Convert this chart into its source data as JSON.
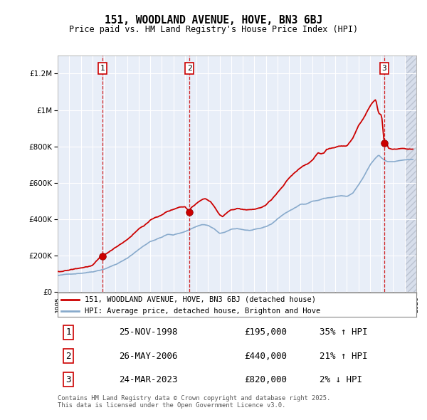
{
  "title": "151, WOODLAND AVENUE, HOVE, BN3 6BJ",
  "subtitle": "Price paid vs. HM Land Registry's House Price Index (HPI)",
  "property_label": "151, WOODLAND AVENUE, HOVE, BN3 6BJ (detached house)",
  "hpi_label": "HPI: Average price, detached house, Brighton and Hove",
  "transactions": [
    {
      "num": 1,
      "date_str": "25-NOV-1998",
      "t": 1998.875,
      "price": 195000,
      "pct": "35%",
      "dir": "↑"
    },
    {
      "num": 2,
      "date_str": "26-MAY-2006",
      "t": 2006.4,
      "price": 440000,
      "pct": "21%",
      "dir": "↑"
    },
    {
      "num": 3,
      "date_str": "24-MAR-2023",
      "t": 2023.22,
      "price": 820000,
      "pct": "2%",
      "dir": "↓"
    }
  ],
  "footer": "Contains HM Land Registry data © Crown copyright and database right 2025.\nThis data is licensed under the Open Government Licence v3.0.",
  "property_color": "#cc0000",
  "hpi_color": "#88aacc",
  "background_color": "#e8eef8",
  "ylim": [
    0,
    1300000
  ],
  "yticks": [
    0,
    200000,
    400000,
    600000,
    800000,
    1000000,
    1200000
  ],
  "xmin": 1995.0,
  "xmax": 2026.0,
  "hatch_start": 2025.0
}
